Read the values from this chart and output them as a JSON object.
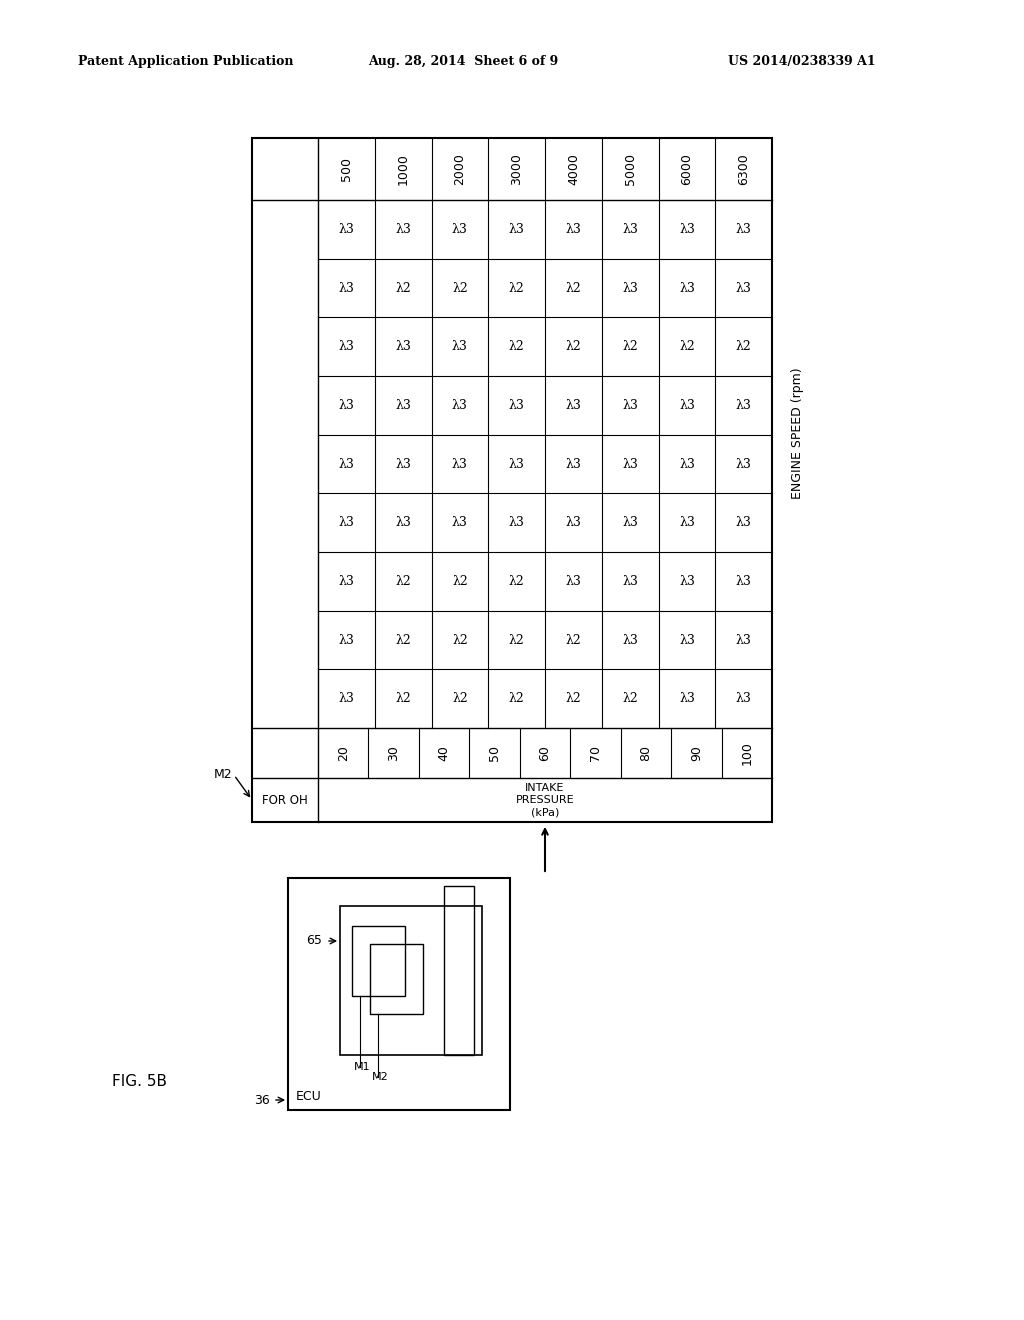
{
  "header_text_left": "Patent Application Publication",
  "header_text_middle": "Aug. 28, 2014  Sheet 6 of 9",
  "header_text_right": "US 2014/0238339 A1",
  "figure_label": "FIG. 5B",
  "table_title_engine_speed": "ENGINE SPEED (rpm)",
  "table_label_for_oh": "FOR OH",
  "table_label_intake": "INTAKE\nPRESSURE\n(kPa)",
  "label_M2": "M2",
  "label_36": "36",
  "label_ECU": "ECU",
  "label_65": "65",
  "label_M1": "M1",
  "label_M2b": "M2",
  "rpm_cols": [
    "500",
    "1000",
    "2000",
    "3000",
    "4000",
    "5000",
    "6000",
    "6300"
  ],
  "pressure_rows": [
    "20",
    "30",
    "40",
    "50",
    "60",
    "70",
    "80",
    "90",
    "100"
  ],
  "table_data": [
    [
      "3",
      "3",
      "3",
      "3",
      "3",
      "3",
      "3",
      "3"
    ],
    [
      "3",
      "2",
      "2",
      "2",
      "2",
      "3",
      "3",
      "3"
    ],
    [
      "3",
      "3",
      "3",
      "2",
      "2",
      "2",
      "2",
      "2"
    ],
    [
      "3",
      "3",
      "3",
      "3",
      "3",
      "3",
      "3",
      "3"
    ],
    [
      "3",
      "3",
      "3",
      "3",
      "3",
      "3",
      "3",
      "3"
    ],
    [
      "3",
      "3",
      "3",
      "3",
      "3",
      "3",
      "3",
      "3"
    ],
    [
      "3",
      "2",
      "2",
      "2",
      "3",
      "3",
      "3",
      "3"
    ],
    [
      "3",
      "2",
      "2",
      "2",
      "2",
      "3",
      "3",
      "3"
    ],
    [
      "3",
      "2",
      "2",
      "2",
      "2",
      "2",
      "3",
      "3"
    ]
  ],
  "bg_color": "#ffffff"
}
